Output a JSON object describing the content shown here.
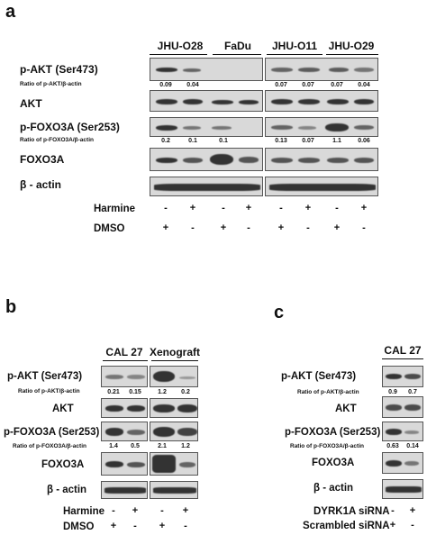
{
  "panel_a": {
    "letter": "a",
    "columns": [
      "JHU-O28",
      "FaDu",
      "JHU-O11",
      "JHU-O29"
    ],
    "rows": {
      "pakt": "p-AKT (Ser473)",
      "pakt_ratio_label": "Ratio of p-AKT/β-actin",
      "akt": "AKT",
      "pfoxo": "p-FOXO3A (Ser253)",
      "pfoxo_ratio_label": "Ratio of p-FOXO3A/β-actin",
      "foxo": "FOXO3A",
      "actin": "β - actin"
    },
    "pakt_ratios": [
      "0.09",
      "0.04",
      "",
      "",
      "0.07",
      "0.07",
      "0.07",
      "0.04"
    ],
    "pfoxo_ratios": [
      "0.2",
      "0.1",
      "0.1",
      "",
      "0.13",
      "0.07",
      "1.1",
      "0.06"
    ],
    "treatment_labels": [
      "Harmine",
      "DMSO"
    ],
    "harmine": [
      "-",
      "+",
      "-",
      "+",
      "-",
      "+",
      "-",
      "+"
    ],
    "dmso": [
      "+",
      "-",
      "+",
      "-",
      "+",
      "-",
      "+",
      "-"
    ]
  },
  "panel_b": {
    "letter": "b",
    "columns": [
      "CAL 27",
      "Xenograft"
    ],
    "rows": {
      "pakt": "p-AKT (Ser473)",
      "pakt_ratio_label": "Ratio of p-AKT/β-actin",
      "akt": "AKT",
      "pfoxo": "p-FOXO3A (Ser253)",
      "pfoxo_ratio_label": "Ratio of p-FOXO3A/β-actin",
      "foxo": "FOXO3A",
      "actin": "β - actin"
    },
    "pakt_ratios": [
      "0.21",
      "0.15",
      "1.2",
      "0.2"
    ],
    "pfoxo_ratios": [
      "1.4",
      "0.5",
      "2.1",
      "1.2"
    ],
    "treatment_labels": [
      "Harmine",
      "DMSO"
    ],
    "harmine": [
      "-",
      "+",
      "-",
      "+"
    ],
    "dmso": [
      "+",
      "-",
      "+",
      "-"
    ]
  },
  "panel_c": {
    "letter": "c",
    "columns": [
      "CAL 27"
    ],
    "rows": {
      "pakt": "p-AKT (Ser473)",
      "pakt_ratio_label": "Ratio of p-AKT/β-actin",
      "akt": "AKT",
      "pfoxo": "p-FOXO3A (Ser253)",
      "pfoxo_ratio_label": "Ratio of p-FOXO3A/β-actin",
      "foxo": "FOXO3A",
      "actin": "β - actin"
    },
    "pakt_ratios": [
      "0.9",
      "0.7"
    ],
    "pfoxo_ratios": [
      "0.63",
      "0.14"
    ],
    "treatment_labels": [
      "DYRK1A siRNA",
      "Scrambled siRNA"
    ],
    "dyrk": [
      "-",
      "+"
    ],
    "scrambled": [
      "+",
      "-"
    ]
  }
}
